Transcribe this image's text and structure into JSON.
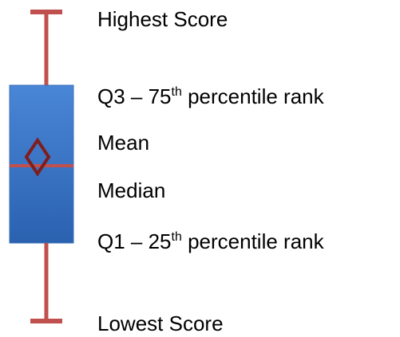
{
  "labels": [
    {
      "text": "Highest Score"
    },
    {
      "prefix": "Q3 – 75",
      "sup": "th",
      "suffix": " percentile rank"
    },
    {
      "text": "Mean"
    },
    {
      "text": "Median"
    },
    {
      "prefix": "Q1 – 25",
      "sup": "th",
      "suffix": " percentile rank"
    },
    {
      "text": "Lowest Score"
    }
  ]
}
